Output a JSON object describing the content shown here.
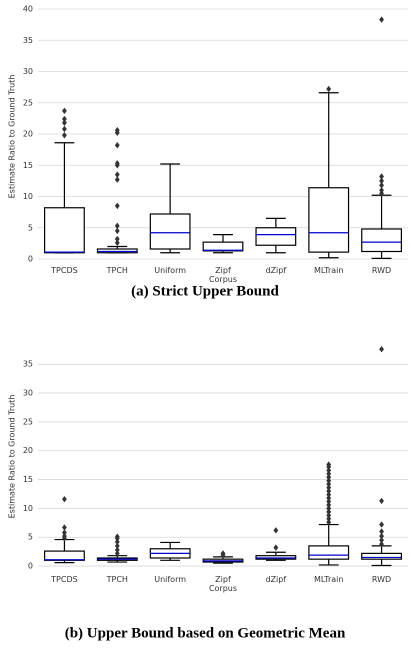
{
  "chart_data": [
    {
      "type": "box",
      "caption": "(a) Strict Upper Bound",
      "ylabel": "Estimate Ratio to Ground Truth",
      "categories": [
        "TPCDS",
        "TPCH",
        "Uniform",
        "Zipf Corpus",
        "dZipf",
        "MLTrain",
        "RWD"
      ],
      "box_color": "#000000",
      "median_color": "#0000cc",
      "flier_color": "#333333",
      "grid": true,
      "ylim": [
        -0.8,
        40
      ],
      "yticks": [
        0,
        5,
        10,
        15,
        20,
        25,
        30,
        35,
        40
      ],
      "boxes": [
        {
          "whisker_low": 1.0,
          "q1": 1.0,
          "median": 1.1,
          "q3": 8.2,
          "whisker_high": 18.6,
          "fliers": [
            19.8,
            20.8,
            21.8,
            22.4,
            23.7
          ]
        },
        {
          "whisker_low": 1.0,
          "q1": 1.0,
          "median": 1.2,
          "q3": 1.6,
          "whisker_high": 2.0,
          "fliers": [
            2.6,
            3.2,
            4.5,
            5.3,
            8.5,
            12.7,
            13.5,
            15.0,
            15.3,
            18.2,
            20.2,
            20.6
          ]
        },
        {
          "whisker_low": 1.0,
          "q1": 1.6,
          "median": 4.2,
          "q3": 7.2,
          "whisker_high": 15.2,
          "fliers": []
        },
        {
          "whisker_low": 1.0,
          "q1": 1.3,
          "median": 1.4,
          "q3": 2.7,
          "whisker_high": 3.9,
          "fliers": []
        },
        {
          "whisker_low": 1.0,
          "q1": 2.2,
          "median": 3.9,
          "q3": 5.0,
          "whisker_high": 6.5,
          "fliers": []
        },
        {
          "whisker_low": 0.2,
          "q1": 1.1,
          "median": 4.2,
          "q3": 11.4,
          "whisker_high": 26.6,
          "fliers": [
            27.2
          ]
        },
        {
          "whisker_low": 0.1,
          "q1": 1.2,
          "median": 2.7,
          "q3": 4.8,
          "whisker_high": 10.2,
          "fliers": [
            10.5,
            11.0,
            11.8,
            12.5,
            13.2,
            38.3
          ]
        }
      ]
    },
    {
      "type": "box",
      "caption": "(b) Upper Bound based on Geometric Mean",
      "ylabel": "Estimate Ratio to Ground Truth",
      "categories": [
        "TPCDS",
        "TPCH",
        "Uniform",
        "Zipf Corpus",
        "dZipf",
        "MLTrain",
        "RWD"
      ],
      "box_color": "#000000",
      "median_color": "#0000cc",
      "flier_color": "#333333",
      "grid": true,
      "ylim": [
        -1.2,
        39.2
      ],
      "yticks": [
        0,
        5,
        10,
        15,
        20,
        25,
        30,
        35
      ],
      "boxes": [
        {
          "whisker_low": 0.6,
          "q1": 1.0,
          "median": 1.1,
          "q3": 2.6,
          "whisker_high": 4.6,
          "fliers": [
            4.8,
            5.2,
            5.8,
            6.7,
            11.6
          ]
        },
        {
          "whisker_low": 0.7,
          "q1": 1.0,
          "median": 1.2,
          "q3": 1.4,
          "whisker_high": 1.8,
          "fliers": [
            2.2,
            2.8,
            3.5,
            4.2,
            4.8,
            5.1
          ]
        },
        {
          "whisker_low": 1.0,
          "q1": 1.4,
          "median": 2.2,
          "q3": 3.0,
          "whisker_high": 4.1,
          "fliers": []
        },
        {
          "whisker_low": 0.5,
          "q1": 0.7,
          "median": 0.9,
          "q3": 1.2,
          "whisker_high": 1.6,
          "fliers": [
            1.9,
            2.2
          ]
        },
        {
          "whisker_low": 1.0,
          "q1": 1.2,
          "median": 1.4,
          "q3": 1.8,
          "whisker_high": 2.4,
          "fliers": [
            3.2,
            6.2
          ]
        },
        {
          "whisker_low": 0.2,
          "q1": 1.2,
          "median": 1.9,
          "q3": 3.5,
          "whisker_high": 7.2,
          "fliers": [
            7.6,
            8.2,
            8.8,
            9.4,
            10.0,
            10.6,
            11.2,
            11.8,
            12.4,
            13.0,
            13.6,
            14.2,
            14.8,
            15.4,
            16.0,
            16.6,
            17.2,
            17.6
          ]
        },
        {
          "whisker_low": 0.1,
          "q1": 1.2,
          "median": 1.5,
          "q3": 2.2,
          "whisker_high": 3.5,
          "fliers": [
            3.8,
            4.5,
            5.2,
            6.0,
            7.2,
            11.3,
            37.6
          ]
        }
      ]
    }
  ]
}
